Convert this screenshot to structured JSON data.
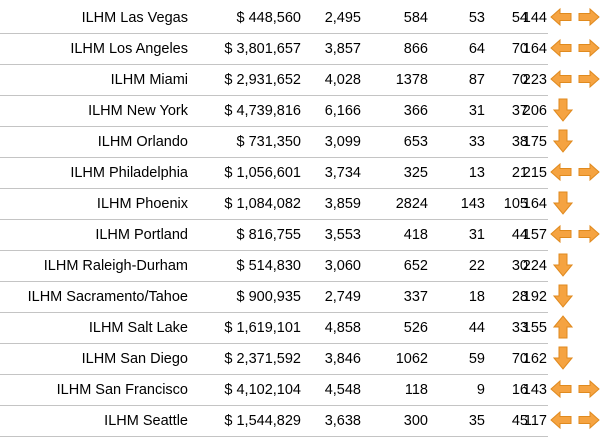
{
  "rows": [
    {
      "name": "ILHM Las Vegas",
      "revenue": "$ 448,560",
      "v1": "2,495",
      "v2": "584",
      "v3": "53",
      "v4": "54",
      "v5": "144",
      "trend": "left-right-arrows-icon"
    },
    {
      "name": "ILHM Los Angeles",
      "revenue": "$ 3,801,657",
      "v1": "3,857",
      "v2": "866",
      "v3": "64",
      "v4": "70",
      "v5": "164",
      "trend": "left-right-arrows-icon"
    },
    {
      "name": "ILHM Miami",
      "revenue": "$ 2,931,652",
      "v1": "4,028",
      "v2": "1378",
      "v3": "87",
      "v4": "70",
      "v5": "223",
      "trend": "left-right-arrows-icon"
    },
    {
      "name": "ILHM New York",
      "revenue": "$ 4,739,816",
      "v1": "6,166",
      "v2": "366",
      "v3": "31",
      "v4": "37",
      "v5": "206",
      "trend": "down-arrow-icon"
    },
    {
      "name": "ILHM Orlando",
      "revenue": "$ 731,350",
      "v1": "3,099",
      "v2": "653",
      "v3": "33",
      "v4": "38",
      "v5": "175",
      "trend": "down-arrow-icon"
    },
    {
      "name": "ILHM Philadelphia",
      "revenue": "$ 1,056,601",
      "v1": "3,734",
      "v2": "325",
      "v3": "13",
      "v4": "21",
      "v5": "215",
      "trend": "left-right-arrows-icon"
    },
    {
      "name": "ILHM Phoenix",
      "revenue": "$ 1,084,082",
      "v1": "3,859",
      "v2": "2824",
      "v3": "143",
      "v4": "105",
      "v5": "164",
      "trend": "down-arrow-icon"
    },
    {
      "name": "ILHM Portland",
      "revenue": "$ 816,755",
      "v1": "3,553",
      "v2": "418",
      "v3": "31",
      "v4": "44",
      "v5": "157",
      "trend": "left-right-arrows-icon"
    },
    {
      "name": "ILHM Raleigh-Durham",
      "revenue": "$ 514,830",
      "v1": "3,060",
      "v2": "652",
      "v3": "22",
      "v4": "30",
      "v5": "224",
      "trend": "down-arrow-icon"
    },
    {
      "name": "ILHM Sacramento/Tahoe",
      "revenue": "$ 900,935",
      "v1": "2,749",
      "v2": "337",
      "v3": "18",
      "v4": "28",
      "v5": "192",
      "trend": "down-arrow-icon"
    },
    {
      "name": "ILHM Salt Lake",
      "revenue": "$ 1,619,101",
      "v1": "4,858",
      "v2": "526",
      "v3": "44",
      "v4": "33",
      "v5": "155",
      "trend": "up-arrow-icon"
    },
    {
      "name": "ILHM San Diego",
      "revenue": "$ 2,371,592",
      "v1": "3,846",
      "v2": "1062",
      "v3": "59",
      "v4": "70",
      "v5": "162",
      "trend": "down-arrow-icon"
    },
    {
      "name": "ILHM San Francisco",
      "revenue": "$ 4,102,104",
      "v1": "4,548",
      "v2": "118",
      "v3": "9",
      "v4": "16",
      "v5": "143",
      "trend": "left-right-arrows-icon"
    },
    {
      "name": "ILHM Seattle",
      "revenue": "$ 1,544,829",
      "v1": "3,638",
      "v2": "300",
      "v3": "35",
      "v4": "45",
      "v5": "117",
      "trend": "left-right-arrows-icon"
    }
  ],
  "colors": {
    "arrow_fill": "#f5a341",
    "arrow_stroke": "#e08a1e",
    "row_line": "#c4c4c4"
  }
}
